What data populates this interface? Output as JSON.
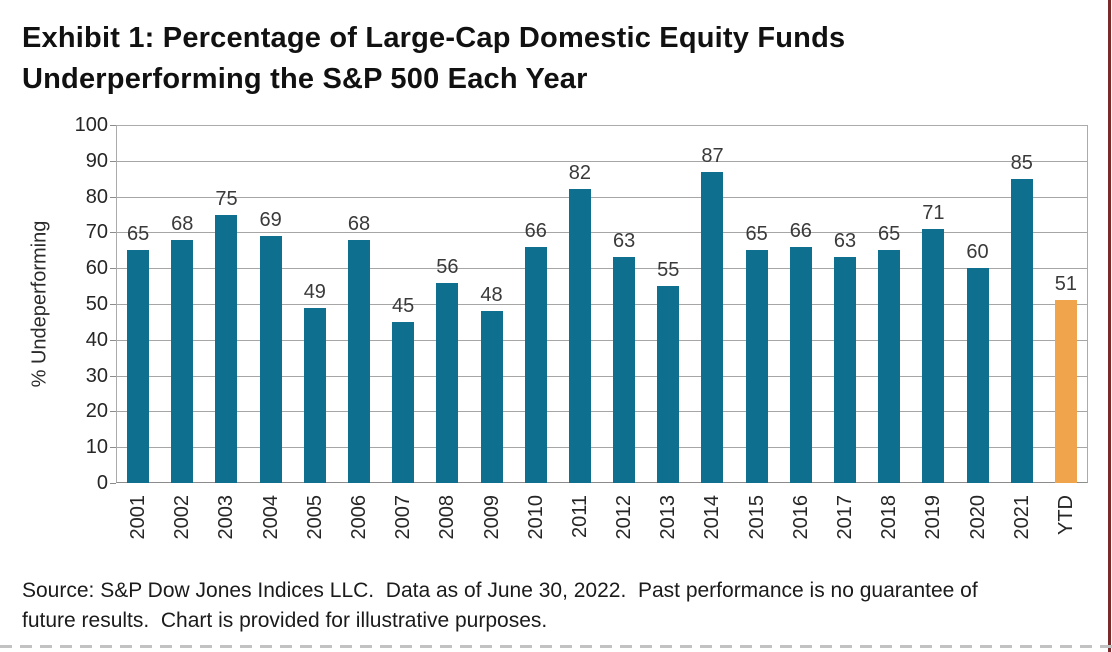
{
  "header": {
    "title_lines": [
      "Exhibit 1: Percentage of Large-Cap Domestic Equity Funds",
      "Underperforming the S&P 500 Each Year"
    ]
  },
  "chart_data": {
    "type": "bar",
    "title": "Exhibit 1: Percentage of Large-Cap Domestic Equity Funds Underperforming the S&P 500 Each Year",
    "categories": [
      "2001",
      "2002",
      "2003",
      "2004",
      "2005",
      "2006",
      "2007",
      "2008",
      "2009",
      "2010",
      "2011",
      "2012",
      "2013",
      "2014",
      "2015",
      "2016",
      "2017",
      "2018",
      "2019",
      "2020",
      "2021",
      "YTD"
    ],
    "values": [
      65,
      68,
      75,
      69,
      49,
      68,
      45,
      56,
      48,
      66,
      82,
      63,
      55,
      87,
      65,
      66,
      63,
      65,
      71,
      60,
      85,
      51
    ],
    "xlabel": "",
    "ylabel": "% Undeperforming",
    "ylim": [
      0,
      100
    ],
    "ytick_step": 10,
    "grid": true,
    "legend_position": "none",
    "value_labels": true,
    "bar_color": "#0e6f8e",
    "highlight_last_bar_color": "#f0a44b",
    "gridline_color": "#a6a6a6"
  },
  "footer": {
    "source_lines": [
      "Source: S&P Dow Jones Indices LLC.  Data as of June 30, 2022.  Past performance is no guarantee of",
      "future results.  Chart is provided for illustrative purposes."
    ]
  }
}
